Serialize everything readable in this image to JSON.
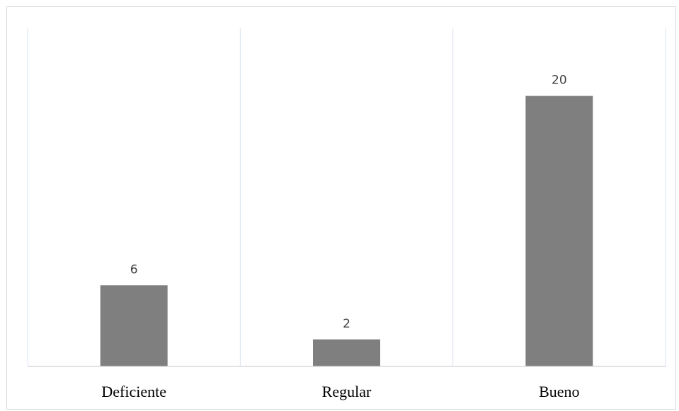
{
  "chart_data": {
    "type": "bar",
    "categories": [
      "Deficiente",
      "Regular",
      "Bueno"
    ],
    "values": [
      6,
      2,
      20
    ],
    "title": "",
    "xlabel": "",
    "ylabel": "",
    "ylim": [
      0,
      25
    ],
    "grid": true,
    "legend": "none",
    "data_labels": [
      "6",
      "2",
      "20"
    ],
    "colors": {
      "bar": "#7f7f7f",
      "gridline": "#dbe3f0",
      "axis": "#d9d9d9",
      "frame": "#d9d9d9"
    }
  }
}
